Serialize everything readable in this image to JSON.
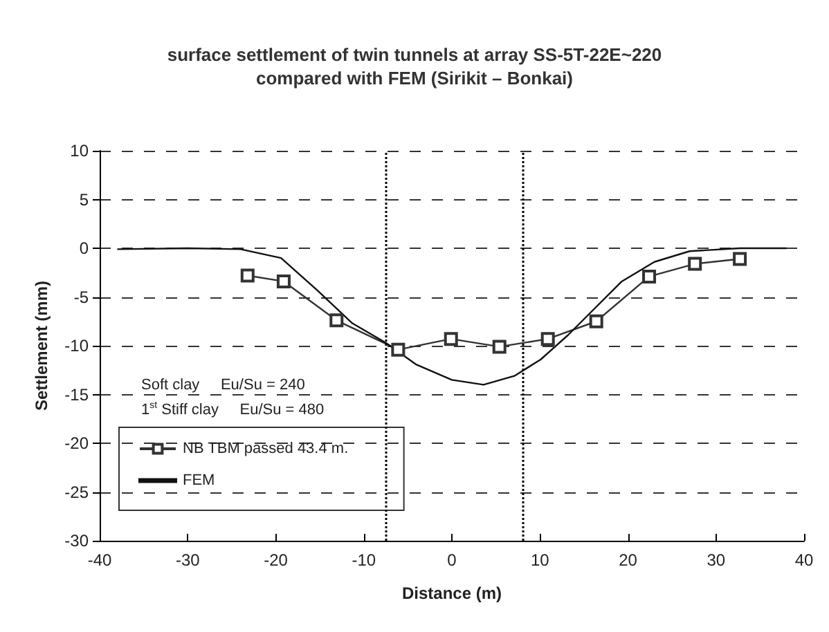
{
  "chart_data": {
    "type": "line",
    "title": "surface settlement of twin tunnels at array SS-5T-22E~220\ncompared with FEM (Sirikit – Bonkai)",
    "xlabel": "Distance (m)",
    "ylabel": "Settlement (mm)",
    "xlim": [
      -40,
      40
    ],
    "xticks": [
      -40,
      -30,
      -20,
      -10,
      0,
      10,
      20,
      30,
      40
    ],
    "ylim": [
      -30,
      10
    ],
    "yticks": [
      -30,
      -25,
      -20,
      -15,
      -10,
      -5,
      0,
      5,
      10
    ],
    "grid": "y",
    "legend": "bottom left",
    "line_style": "solid",
    "series": [
      {
        "name": "NB TBM passed 43.4 m.",
        "color": "#333333",
        "marker": "square",
        "x": [
          -23.2,
          -19.1,
          -13.1,
          -6.1,
          -0.1,
          5.4,
          10.9,
          16.4,
          22.4,
          27.6,
          32.7
        ],
        "values": [
          -2.8,
          -3.4,
          -7.4,
          -10.4,
          -9.3,
          -10.1,
          -9.3,
          -7.5,
          -2.9,
          -1.6,
          -1.1
        ]
      },
      {
        "name": "FEM",
        "color": "#111111",
        "marker": "none",
        "x": [
          -38,
          -30,
          -24,
          -19.4,
          -15.3,
          -11.3,
          -7.5,
          -4.1,
          0,
          3.6,
          7.1,
          10.1,
          13.2,
          16.3,
          19.3,
          23,
          27,
          32.7,
          38
        ],
        "values": [
          -0.1,
          0,
          -0.1,
          -1.0,
          -4.3,
          -7.7,
          -9.7,
          -11.9,
          -13.5,
          -14.0,
          -13.1,
          -11.4,
          -8.9,
          -6.1,
          -3.4,
          -1.4,
          -0.3,
          0,
          0
        ]
      }
    ],
    "ref_lines": [
      {
        "axis": "x",
        "value": -7.5,
        "line_style": "dotted"
      },
      {
        "axis": "x",
        "value": 8,
        "line_style": "dotted"
      }
    ],
    "annotations": [
      "Soft clay     Eu/Su = 240",
      "1$^{st}$ Stiff clay     Eu/Su = 480"
    ]
  }
}
